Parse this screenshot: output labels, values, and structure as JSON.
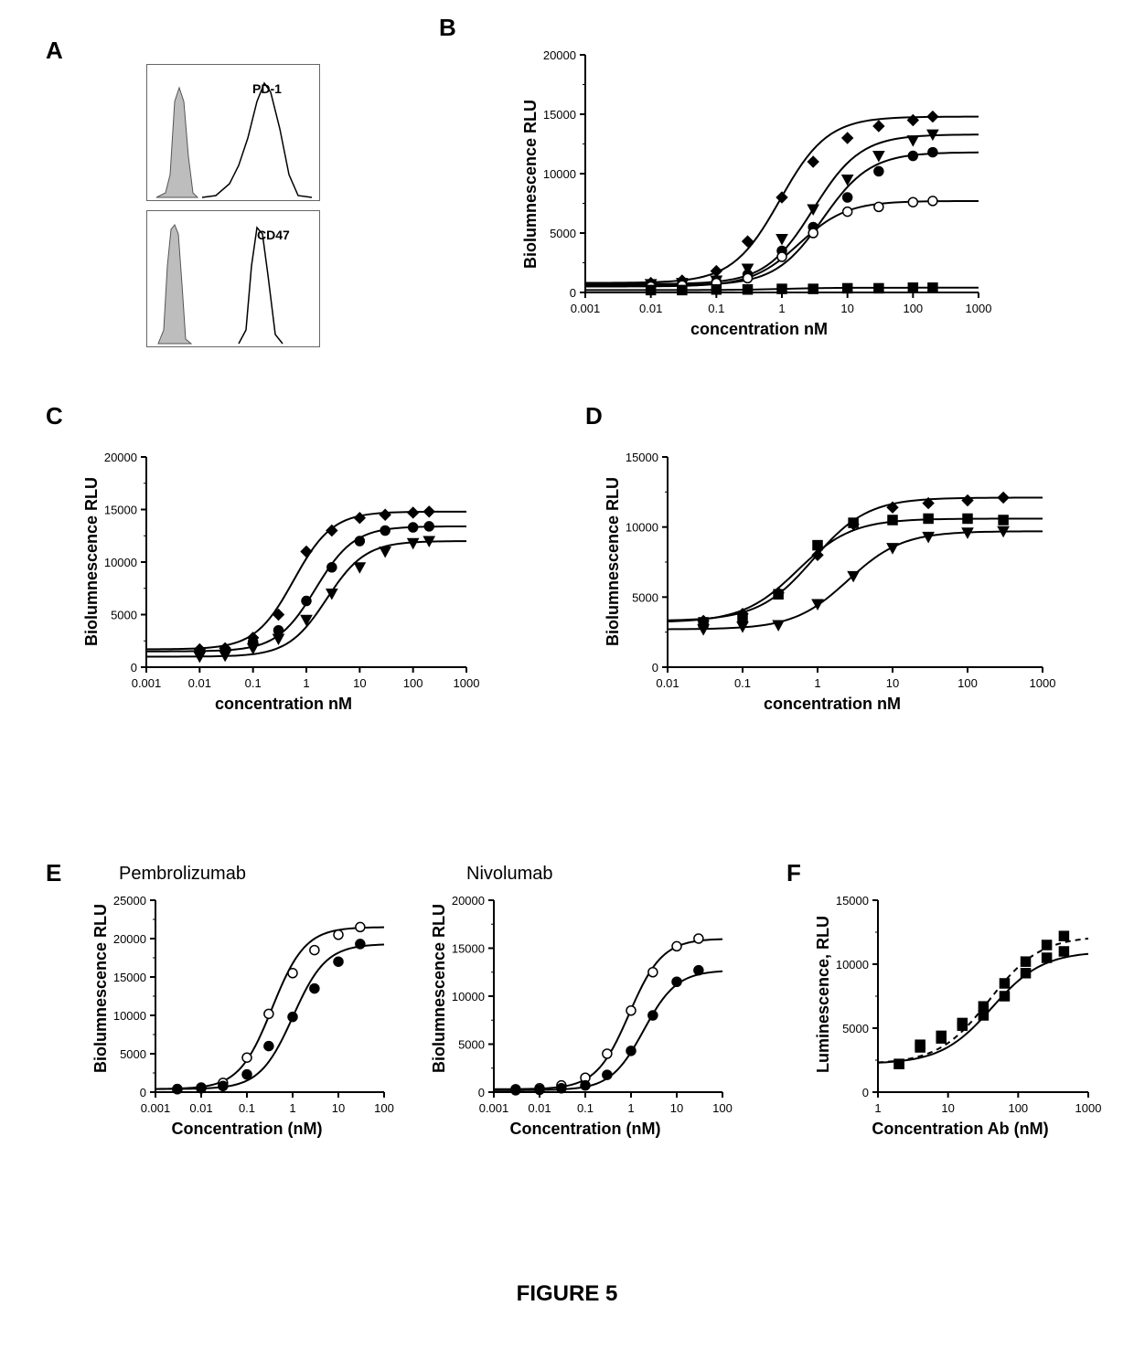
{
  "caption": "FIGURE 5",
  "panels": {
    "A": {
      "label": "A",
      "histograms": [
        {
          "label": "PD-1"
        },
        {
          "label": "CD47"
        }
      ]
    },
    "B": {
      "label": "B",
      "type": "dose-response",
      "ylabel": "Biolumnescence RLU",
      "xlabel": "concentration nM",
      "ylim": [
        0,
        20000
      ],
      "ytick_step": 5000,
      "xlim_log": [
        -3,
        3
      ],
      "xticks": [
        "0.001",
        "0.01",
        "0.1",
        "1",
        "10",
        "100",
        "1000"
      ],
      "fontsize_label": 18,
      "fontsize_tick": 13,
      "series": [
        {
          "marker": "diamond",
          "color": "#000000",
          "x": [
            0.01,
            0.03,
            0.1,
            0.3,
            1,
            3,
            10,
            30,
            100,
            200
          ],
          "y": [
            800,
            1000,
            1800,
            4300,
            8000,
            11000,
            13000,
            14000,
            14500,
            14800
          ]
        },
        {
          "marker": "triangle-down",
          "color": "#000000",
          "x": [
            0.01,
            0.03,
            0.1,
            0.3,
            1,
            3,
            10,
            30,
            100,
            200
          ],
          "y": [
            700,
            800,
            1000,
            2000,
            4500,
            7000,
            9500,
            11500,
            12800,
            13300
          ]
        },
        {
          "marker": "circle",
          "color": "#000000",
          "fill": "#000000",
          "x": [
            0.01,
            0.03,
            0.1,
            0.3,
            1,
            3,
            10,
            30,
            100,
            200
          ],
          "y": [
            600,
            700,
            900,
            1500,
            3500,
            5500,
            8000,
            10200,
            11500,
            11800
          ]
        },
        {
          "marker": "circle",
          "color": "#000000",
          "fill": "#ffffff",
          "x": [
            0.01,
            0.03,
            0.1,
            0.3,
            1,
            3,
            10,
            30,
            100,
            200
          ],
          "y": [
            500,
            600,
            800,
            1200,
            3000,
            5000,
            6800,
            7200,
            7600,
            7700
          ]
        },
        {
          "marker": "square",
          "color": "#000000",
          "fill": "#000000",
          "x": [
            0.01,
            0.03,
            0.1,
            0.3,
            1,
            3,
            10,
            30,
            100,
            200
          ],
          "y": [
            200,
            200,
            250,
            250,
            300,
            300,
            350,
            350,
            400,
            400
          ]
        }
      ]
    },
    "C": {
      "label": "C",
      "type": "dose-response",
      "ylabel": "Biolumnescence RLU",
      "xlabel": "concentration nM",
      "ylim": [
        0,
        20000
      ],
      "ytick_step": 5000,
      "xlim_log": [
        -3,
        3
      ],
      "xticks": [
        "0.001",
        "0.01",
        "0.1",
        "1",
        "10",
        "100",
        "1000"
      ],
      "series": [
        {
          "marker": "diamond",
          "color": "#000000",
          "x": [
            0.01,
            0.03,
            0.1,
            0.3,
            1,
            3,
            10,
            30,
            100,
            200
          ],
          "y": [
            1700,
            1800,
            2800,
            5000,
            11000,
            13000,
            14200,
            14500,
            14700,
            14800
          ]
        },
        {
          "marker": "circle",
          "color": "#000000",
          "fill": "#000000",
          "x": [
            0.01,
            0.03,
            0.1,
            0.3,
            1,
            3,
            10,
            30,
            100,
            200
          ],
          "y": [
            1500,
            1600,
            2400,
            3500,
            6300,
            9500,
            12000,
            13000,
            13300,
            13400
          ]
        },
        {
          "marker": "triangle-down",
          "color": "#000000",
          "x": [
            0.01,
            0.03,
            0.1,
            0.3,
            1,
            3,
            10,
            30,
            100,
            200
          ],
          "y": [
            1000,
            1100,
            1800,
            2700,
            4500,
            7000,
            9500,
            11000,
            11800,
            12000
          ]
        }
      ]
    },
    "D": {
      "label": "D",
      "type": "dose-response",
      "ylabel": "Biolumnescence RLU",
      "xlabel": "concentration nM",
      "ylim": [
        0,
        15000
      ],
      "ytick_step": 5000,
      "xlim_log": [
        -2,
        3
      ],
      "xticks": [
        "0.01",
        "0.1",
        "1",
        "10",
        "100",
        "1000"
      ],
      "series": [
        {
          "marker": "diamond",
          "color": "#000000",
          "x": [
            0.03,
            0.1,
            0.3,
            1,
            3,
            10,
            30,
            100,
            300
          ],
          "y": [
            3300,
            3800,
            5300,
            8000,
            10200,
            11400,
            11700,
            11900,
            12100
          ]
        },
        {
          "marker": "square",
          "color": "#000000",
          "fill": "#000000",
          "x": [
            0.03,
            0.1,
            0.3,
            1,
            3,
            10,
            30,
            100,
            300
          ],
          "y": [
            3200,
            3500,
            5200,
            8700,
            10300,
            10500,
            10600,
            10600,
            10500
          ]
        },
        {
          "marker": "triangle-down",
          "color": "#000000",
          "x": [
            0.03,
            0.1,
            0.3,
            1,
            3,
            10,
            30,
            100,
            300
          ],
          "y": [
            2700,
            2900,
            3000,
            4500,
            6500,
            8500,
            9300,
            9600,
            9700
          ]
        }
      ]
    },
    "E": {
      "label": "E",
      "titles": [
        "Pembrolizumab",
        "Nivolumab"
      ],
      "charts": [
        {
          "ylabel": "Biolumnescence RLU",
          "xlabel": "Concentration (nM)",
          "ylim": [
            0,
            25000
          ],
          "ytick_step": 5000,
          "xlim_log": [
            -3,
            2
          ],
          "xticks": [
            "0.001",
            "0.01",
            "0.1",
            "1",
            "10",
            "100"
          ],
          "series": [
            {
              "marker": "circle",
              "color": "#000000",
              "fill": "#ffffff",
              "x": [
                0.003,
                0.01,
                0.03,
                0.1,
                0.3,
                1,
                3,
                10,
                30
              ],
              "y": [
                400,
                600,
                1200,
                4500,
                10200,
                15500,
                18500,
                20500,
                21500
              ]
            },
            {
              "marker": "circle",
              "color": "#000000",
              "fill": "#000000",
              "x": [
                0.003,
                0.01,
                0.03,
                0.1,
                0.3,
                1,
                3,
                10,
                30
              ],
              "y": [
                400,
                500,
                800,
                2300,
                6000,
                9800,
                13500,
                17000,
                19300
              ]
            }
          ]
        },
        {
          "ylabel": "Biolumnescence RLU",
          "xlabel": "Concentration (nM)",
          "ylim": [
            0,
            20000
          ],
          "ytick_step": 5000,
          "xlim_log": [
            -3,
            2
          ],
          "xticks": [
            "0.001",
            "0.01",
            "0.1",
            "1",
            "10",
            "100"
          ],
          "series": [
            {
              "marker": "circle",
              "color": "#000000",
              "fill": "#ffffff",
              "x": [
                0.003,
                0.01,
                0.03,
                0.1,
                0.3,
                1,
                3,
                10,
                30
              ],
              "y": [
                300,
                400,
                700,
                1500,
                4000,
                8500,
                12500,
                15200,
                16000
              ]
            },
            {
              "marker": "circle",
              "color": "#000000",
              "fill": "#000000",
              "x": [
                0.003,
                0.01,
                0.03,
                0.1,
                0.3,
                1,
                3,
                10,
                30
              ],
              "y": [
                200,
                250,
                400,
                700,
                1800,
                4300,
                8000,
                11500,
                12700
              ]
            }
          ]
        }
      ]
    },
    "F": {
      "label": "F",
      "ylabel": "Luminescence, RLU",
      "xlabel": "Concentration Ab (nM)",
      "ylim": [
        0,
        15000
      ],
      "ytick_step": 5000,
      "xlim_log": [
        0,
        3
      ],
      "xticks_major": [
        1,
        10,
        100,
        1000
      ],
      "xticks_labels": [
        "1",
        "10",
        "100",
        "1000"
      ],
      "series": [
        {
          "marker": "square",
          "color": "#000000",
          "fill": "#000000",
          "dash": "solid",
          "x": [
            2,
            4,
            8,
            16,
            32,
            64,
            128,
            256,
            450
          ],
          "y": [
            2200,
            3500,
            4400,
            5200,
            6000,
            7500,
            9300,
            10500,
            11000
          ]
        },
        {
          "marker": "square",
          "color": "#000000",
          "fill": "#000000",
          "dash": "dash",
          "x": [
            2,
            4,
            8,
            16,
            32,
            64,
            128,
            256,
            450
          ],
          "y": [
            2200,
            3700,
            4200,
            5400,
            6700,
            8500,
            10200,
            11500,
            12200
          ]
        }
      ]
    }
  },
  "colors": {
    "fg": "#000000",
    "bg": "#ffffff",
    "gray": "#bdbdbd"
  }
}
